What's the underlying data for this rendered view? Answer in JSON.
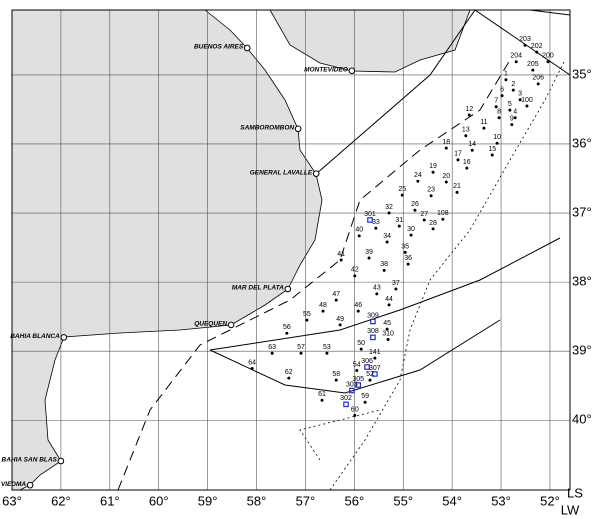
{
  "map": {
    "x_axis_label": "LW",
    "y_axis_label": "LS",
    "grid": true,
    "xlim": [
      63,
      51.59
    ],
    "ylim": [
      34.06,
      41.01
    ],
    "xticks": [
      {
        "value": 63,
        "label": "63°"
      },
      {
        "value": 62,
        "label": "62°"
      },
      {
        "value": 61,
        "label": "61°"
      },
      {
        "value": 60,
        "label": "60°"
      },
      {
        "value": 59,
        "label": "59°"
      },
      {
        "value": 58,
        "label": "58°"
      },
      {
        "value": 57,
        "label": "57°"
      },
      {
        "value": 56,
        "label": "56°"
      },
      {
        "value": 55,
        "label": "55°"
      },
      {
        "value": 54,
        "label": "54°"
      },
      {
        "value": 53,
        "label": "53°"
      },
      {
        "value": 52,
        "label": "52°"
      }
    ],
    "yticks": [
      {
        "value": 35,
        "label": "35°"
      },
      {
        "value": 36,
        "label": "36°"
      },
      {
        "value": 37,
        "label": "37°"
      },
      {
        "value": 38,
        "label": "38°"
      },
      {
        "value": 39,
        "label": "39°"
      },
      {
        "value": 40,
        "label": "40°"
      }
    ]
  },
  "cities": [
    {
      "name": "BUENOS AIRES",
      "lon": 58.19,
      "lat": 34.61
    },
    {
      "name": "MONTEVIDEO",
      "lon": 56.05,
      "lat": 34.94
    },
    {
      "name": "SAMBOROMBON",
      "lon": 57.15,
      "lat": 35.78
    },
    {
      "name": "GENERAL LAVALLE",
      "lon": 56.78,
      "lat": 36.43
    },
    {
      "name": "MAR DEL PLATA",
      "lon": 57.36,
      "lat": 38.1
    },
    {
      "name": "QUEQUEN",
      "lon": 58.52,
      "lat": 38.62
    },
    {
      "name": "BAHIA BLANCA",
      "lon": 61.94,
      "lat": 38.8
    },
    {
      "name": "BAHIA SAN BLAS",
      "lon": 62.0,
      "lat": 40.59
    },
    {
      "name": "VIEDMA",
      "lon": 62.63,
      "lat": 40.94
    }
  ],
  "stations": [
    {
      "label": "203",
      "lon": 52.51,
      "lat": 34.57
    },
    {
      "label": "202",
      "lon": 52.27,
      "lat": 34.67
    },
    {
      "label": "200",
      "lon": 52.04,
      "lat": 34.81
    },
    {
      "label": "204",
      "lon": 52.69,
      "lat": 34.81
    },
    {
      "label": "205",
      "lon": 52.35,
      "lat": 34.93
    },
    {
      "label": "206",
      "lon": 52.24,
      "lat": 35.13
    },
    {
      "label": "1",
      "lon": 52.9,
      "lat": 35.07
    },
    {
      "label": "2",
      "lon": 52.75,
      "lat": 35.22
    },
    {
      "label": "3",
      "lon": 52.61,
      "lat": 35.36
    },
    {
      "label": "6",
      "lon": 52.98,
      "lat": 35.3
    },
    {
      "label": "100",
      "lon": 52.47,
      "lat": 35.45
    },
    {
      "label": "5",
      "lon": 52.82,
      "lat": 35.51
    },
    {
      "label": "4",
      "lon": 52.71,
      "lat": 35.62
    },
    {
      "label": "7",
      "lon": 53.1,
      "lat": 35.46
    },
    {
      "label": "8",
      "lon": 53.04,
      "lat": 35.62
    },
    {
      "label": "9",
      "lon": 52.78,
      "lat": 35.72
    },
    {
      "label": "12",
      "lon": 53.65,
      "lat": 35.58
    },
    {
      "label": "11",
      "lon": 53.35,
      "lat": 35.77
    },
    {
      "label": "13",
      "lon": 53.72,
      "lat": 35.88
    },
    {
      "label": "10",
      "lon": 53.08,
      "lat": 35.99
    },
    {
      "label": "15",
      "lon": 53.18,
      "lat": 36.16
    },
    {
      "label": "14",
      "lon": 53.59,
      "lat": 36.09
    },
    {
      "label": "18",
      "lon": 54.12,
      "lat": 36.06
    },
    {
      "label": "17",
      "lon": 53.88,
      "lat": 36.23
    },
    {
      "label": "16",
      "lon": 53.7,
      "lat": 36.35
    },
    {
      "label": "19",
      "lon": 54.39,
      "lat": 36.41
    },
    {
      "label": "20",
      "lon": 54.12,
      "lat": 36.55
    },
    {
      "label": "21",
      "lon": 53.9,
      "lat": 36.7
    },
    {
      "label": "23",
      "lon": 54.43,
      "lat": 36.75
    },
    {
      "label": "24",
      "lon": 54.7,
      "lat": 36.54
    },
    {
      "label": "25",
      "lon": 55.02,
      "lat": 36.74
    },
    {
      "label": "26",
      "lon": 54.76,
      "lat": 36.96
    },
    {
      "label": "108",
      "lon": 54.19,
      "lat": 37.09
    },
    {
      "label": "27",
      "lon": 54.57,
      "lat": 37.1
    },
    {
      "label": "28",
      "lon": 54.39,
      "lat": 37.23
    },
    {
      "label": "30",
      "lon": 54.84,
      "lat": 37.32
    },
    {
      "label": "31",
      "lon": 55.08,
      "lat": 37.19
    },
    {
      "label": "32",
      "lon": 55.29,
      "lat": 37.0
    },
    {
      "label": "301",
      "lon": 55.68,
      "lat": 37.1,
      "marker": "square"
    },
    {
      "label": "33",
      "lon": 55.56,
      "lat": 37.22
    },
    {
      "label": "35",
      "lon": 54.96,
      "lat": 37.57
    },
    {
      "label": "36",
      "lon": 54.9,
      "lat": 37.74
    },
    {
      "label": "34",
      "lon": 55.33,
      "lat": 37.42
    },
    {
      "label": "40",
      "lon": 55.9,
      "lat": 37.33
    },
    {
      "label": "39",
      "lon": 55.7,
      "lat": 37.65
    },
    {
      "label": "38",
      "lon": 55.39,
      "lat": 37.83
    },
    {
      "label": "41",
      "lon": 56.27,
      "lat": 37.68
    },
    {
      "label": "42",
      "lon": 55.99,
      "lat": 37.91
    },
    {
      "label": "37",
      "lon": 55.15,
      "lat": 38.1
    },
    {
      "label": "43",
      "lon": 55.54,
      "lat": 38.17
    },
    {
      "label": "44",
      "lon": 55.29,
      "lat": 38.33
    },
    {
      "label": "45",
      "lon": 55.33,
      "lat": 38.68
    },
    {
      "label": "46",
      "lon": 55.92,
      "lat": 38.42
    },
    {
      "label": "47",
      "lon": 56.37,
      "lat": 38.26
    },
    {
      "label": "48",
      "lon": 56.64,
      "lat": 38.42
    },
    {
      "label": "49",
      "lon": 56.29,
      "lat": 38.62
    },
    {
      "label": "309",
      "lon": 55.62,
      "lat": 38.57,
      "marker": "square"
    },
    {
      "label": "308",
      "lon": 55.62,
      "lat": 38.8,
      "marker": "square"
    },
    {
      "label": "310",
      "lon": 55.31,
      "lat": 38.83
    },
    {
      "label": "50",
      "lon": 55.86,
      "lat": 38.97
    },
    {
      "label": "53",
      "lon": 56.56,
      "lat": 39.03
    },
    {
      "label": "55",
      "lon": 56.97,
      "lat": 38.55
    },
    {
      "label": "56",
      "lon": 57.38,
      "lat": 38.74
    },
    {
      "label": "57",
      "lon": 57.09,
      "lat": 39.03
    },
    {
      "label": "63",
      "lon": 57.68,
      "lat": 39.03
    },
    {
      "label": "64",
      "lon": 58.09,
      "lat": 39.25
    },
    {
      "label": "62",
      "lon": 57.34,
      "lat": 39.39
    },
    {
      "label": "54",
      "lon": 55.95,
      "lat": 39.28
    },
    {
      "label": "141",
      "lon": 55.58,
      "lat": 39.1
    },
    {
      "label": "306",
      "lon": 55.74,
      "lat": 39.23,
      "marker": "square"
    },
    {
      "label": "307",
      "lon": 55.58,
      "lat": 39.33,
      "marker": "square"
    },
    {
      "label": "58",
      "lon": 56.37,
      "lat": 39.42
    },
    {
      "label": "305",
      "lon": 55.92,
      "lat": 39.49,
      "marker": "square"
    },
    {
      "label": "52",
      "lon": 55.68,
      "lat": 39.42
    },
    {
      "label": "303",
      "lon": 56.05,
      "lat": 39.57,
      "marker": "square"
    },
    {
      "label": "59",
      "lon": 55.78,
      "lat": 39.74
    },
    {
      "label": "61",
      "lon": 56.66,
      "lat": 39.71
    },
    {
      "label": "302",
      "lon": 56.17,
      "lat": 39.77,
      "marker": "square"
    },
    {
      "label": "60",
      "lon": 55.99,
      "lat": 39.93
    }
  ]
}
